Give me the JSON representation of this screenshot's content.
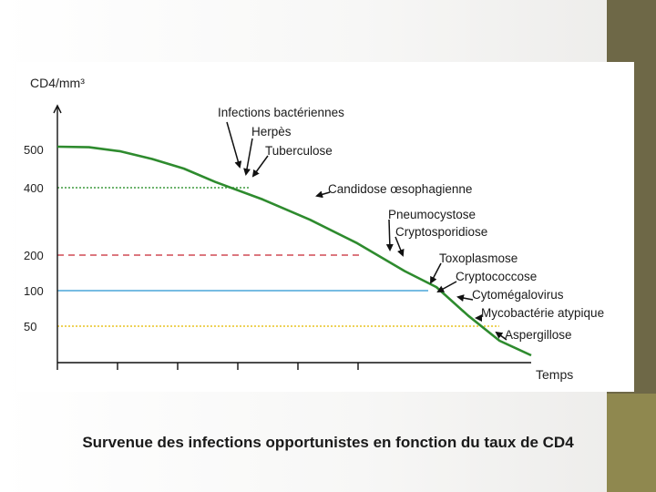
{
  "caption": "Survenue des infections opportunistes en fonction du taux de CD4",
  "chart_data": {
    "type": "line",
    "xlabel": "Temps",
    "ylabel": "CD4/mm³",
    "x_ticks": [
      "",
      "",
      "",
      "",
      "",
      ""
    ],
    "y_ticks": [
      50,
      100,
      200,
      400,
      500
    ],
    "series": [
      {
        "color": "#2e8b2e",
        "points": [
          [
            0,
            510
          ],
          [
            20,
            508
          ],
          [
            40,
            495
          ],
          [
            60,
            475
          ],
          [
            80,
            450
          ],
          [
            100,
            415
          ],
          [
            130,
            365
          ],
          [
            160,
            305
          ],
          [
            190,
            235
          ],
          [
            220,
            155
          ],
          [
            240,
            110
          ],
          [
            260,
            65
          ],
          [
            280,
            30
          ],
          [
            300,
            10
          ]
        ]
      }
    ],
    "thresholds": [
      {
        "value": 400,
        "color": "#3d9a3d",
        "style": "dotted"
      },
      {
        "value": 200,
        "color": "#d04a55",
        "style": "dashed"
      },
      {
        "value": 100,
        "color": "#4aa6d8",
        "style": "solid"
      },
      {
        "value": 50,
        "color": "#e8c420",
        "style": "dotted"
      }
    ],
    "annotations": [
      {
        "label": "Infections bactériennes",
        "x": 90,
        "y": 440
      },
      {
        "label": "Herpès",
        "x": 100,
        "y": 420
      },
      {
        "label": "Tuberculose",
        "x": 105,
        "y": 410
      },
      {
        "label": "Candidose œsophagienne",
        "x": 132,
        "y": 360
      },
      {
        "label": "Pneumocystose",
        "x": 175,
        "y": 265
      },
      {
        "label": "Cryptosporidiose",
        "x": 180,
        "y": 250
      },
      {
        "label": "Toxoplasmose",
        "x": 205,
        "y": 190
      },
      {
        "label": "Cryptococcose",
        "x": 213,
        "y": 168
      },
      {
        "label": "Cytomégalovirus",
        "x": 225,
        "y": 140
      },
      {
        "label": "Mycobactérie atypique",
        "x": 237,
        "y": 115
      },
      {
        "label": "Aspergillose",
        "x": 245,
        "y": 100
      }
    ]
  }
}
